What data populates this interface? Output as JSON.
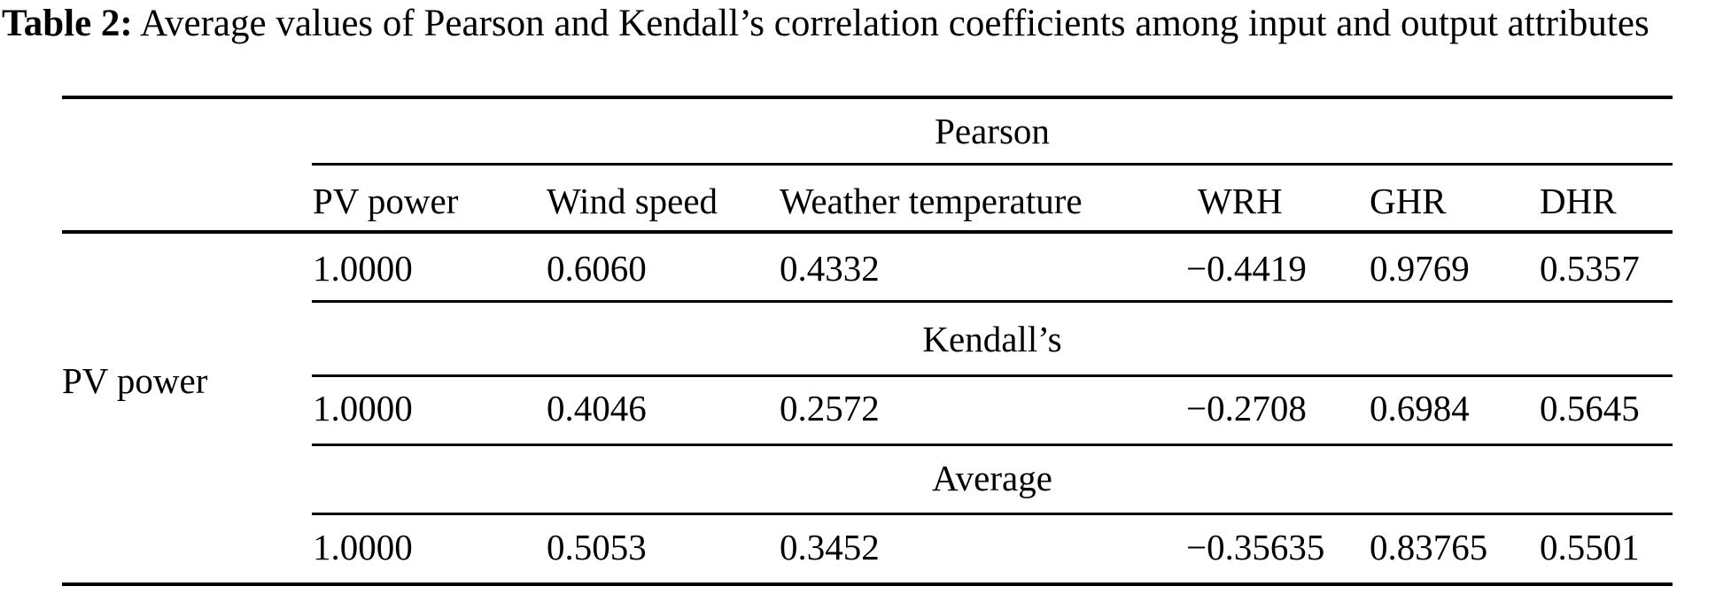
{
  "caption": {
    "label": "Table 2:",
    "text": " Average values of Pearson and Kendall’s correlation coefficients among input and output attributes"
  },
  "table": {
    "row_label": "PV power",
    "columns": [
      "PV power",
      "Wind speed",
      "Weather temperature",
      "WRH",
      "GHR",
      "DHR"
    ],
    "sections": [
      {
        "name": "Pearson",
        "values": [
          "1.0000",
          "0.6060",
          "0.4332",
          "−0.4419",
          "0.9769",
          "0.5357"
        ]
      },
      {
        "name": "Kendall’s",
        "values": [
          "1.0000",
          "0.4046",
          "0.2572",
          "−0.2708",
          "0.6984",
          "0.5645"
        ]
      },
      {
        "name": "Average",
        "values": [
          "1.0000",
          "0.5053",
          "0.3452",
          "−0.35635",
          "0.83765",
          "0.5501"
        ]
      }
    ]
  }
}
